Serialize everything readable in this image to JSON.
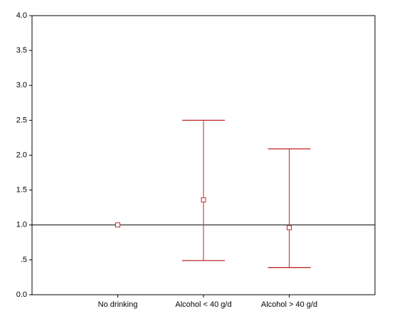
{
  "chart_data": {
    "type": "errorbar",
    "categories": [
      "No drinking",
      "Alcohol < 40 g/d",
      "Alcohol > 40 g/d"
    ],
    "values": [
      1.0,
      1.36,
      0.96
    ],
    "lower": [
      null,
      0.49,
      0.39
    ],
    "upper": [
      null,
      2.5,
      2.09
    ],
    "color": "#c0282a",
    "reference_line": 1,
    "ylim": [
      0,
      4
    ],
    "yticks": [
      {
        "value": 0,
        "label": "0.0"
      },
      {
        "value": 0.5,
        "label": ".5"
      },
      {
        "value": 1,
        "label": "1.0"
      },
      1.5,
      {
        "value": 2,
        "label": "2.0"
      },
      2.5,
      {
        "value": 3,
        "label": "3.0"
      },
      3.5,
      {
        "value": 4,
        "label": "4.0"
      }
    ]
  }
}
